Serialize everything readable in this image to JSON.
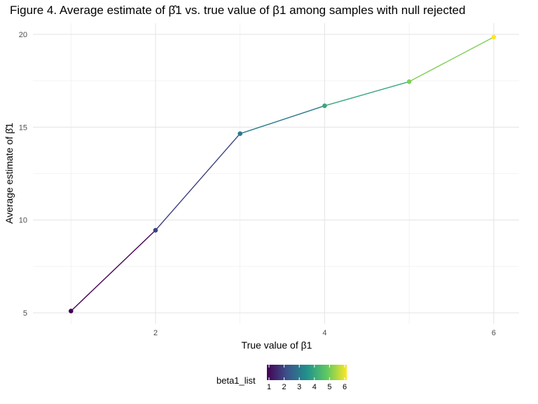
{
  "chart_data": {
    "type": "line",
    "title": "Figure 4. Average estimate of β̂1 vs. true value of β1 among samples with null rejected",
    "xlabel": "True value of β1",
    "ylabel": "Average estimate of β̂1",
    "x": [
      1,
      2,
      3,
      4,
      5,
      6
    ],
    "y": [
      5.1,
      9.45,
      14.65,
      16.15,
      17.45,
      19.85
    ],
    "color_values": [
      1,
      2,
      3,
      4,
      5,
      6
    ],
    "xlim": [
      0.55,
      6.3
    ],
    "ylim": [
      4.4,
      20.6
    ],
    "x_ticks": [
      2,
      4,
      6
    ],
    "y_ticks": [
      5,
      10,
      15,
      20
    ],
    "grid": true,
    "legend": {
      "title": "beta1_list",
      "placement": "bottom",
      "ticks": [
        1,
        2,
        3,
        4,
        5,
        6
      ],
      "colormap": "viridis",
      "colors": [
        "#440154",
        "#3b528b",
        "#21918c",
        "#5ec962",
        "#fde725"
      ]
    }
  }
}
